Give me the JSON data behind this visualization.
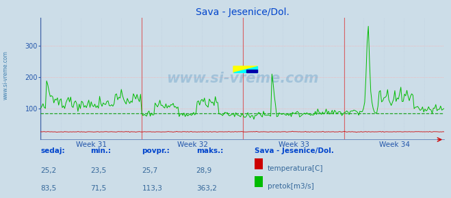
{
  "title": "Sava - Jesenice/Dol.",
  "bg_color": "#ccdde8",
  "plot_bg_color": "#ccdde8",
  "grid_color_h": "#ffaaaa",
  "grid_color_v": "#bbccdd",
  "yticks": [
    100,
    200,
    300
  ],
  "ylim": [
    0,
    390
  ],
  "week_labels": [
    "Week 31",
    "Week 32",
    "Week 33",
    "Week 34"
  ],
  "temp_color": "#cc0000",
  "flow_color": "#00bb00",
  "avg_flow_color": "#009900",
  "avg_flow_value": 83.5,
  "watermark": "www.si-vreme.com",
  "watermark_color": "#4488bb",
  "side_label": "www.si-vreme.com",
  "table_headers": [
    "sedaj:",
    "min.:",
    "povpr.:",
    "maks.:"
  ],
  "table_label": "Sava - Jesenice/Dol.",
  "table_data": [
    [
      "25,2",
      "23,5",
      "25,7",
      "28,9"
    ],
    [
      "83,5",
      "71,5",
      "113,3",
      "363,2"
    ]
  ],
  "legend_labels": [
    "temperatura[C]",
    "pretok[m3/s]"
  ],
  "legend_colors": [
    "#cc0000",
    "#00bb00"
  ],
  "n_points": 336,
  "logo_yellow": "#ffff00",
  "logo_cyan": "#00ffff",
  "logo_blue": "#0000aa"
}
